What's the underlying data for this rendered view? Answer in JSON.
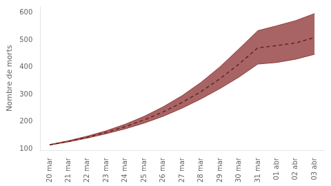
{
  "chart_data": {
    "type": "line",
    "ylabel": "Nombre de morts",
    "categories": [
      "20 mar",
      "21 mar",
      "22 mar",
      "23 mar",
      "24 mar",
      "25 mar",
      "26 mar",
      "27 mar",
      "28 mar",
      "29 mar",
      "30 mar",
      "31 mar",
      "01 abr",
      "02 abr",
      "03 abr"
    ],
    "series": [
      {
        "type": "area",
        "color": "#8b3030",
        "values": [
          116,
          130,
          147,
          167,
          191,
          220,
          255,
          296,
          345,
          402,
          468,
          535,
          553,
          572,
          598
        ]
      },
      {
        "type": "area",
        "color": "#8b3030",
        "values": [
          114,
          126,
          140,
          156,
          174,
          195,
          220,
          250,
          284,
          322,
          364,
          412,
          418,
          430,
          448
        ]
      },
      {
        "type": "line",
        "color": "#6b2020",
        "line_style": "dashed",
        "values": [
          115,
          128,
          143,
          161,
          182,
          207,
          236,
          271,
          311,
          358,
          412,
          472,
          480,
          490,
          510
        ]
      }
    ],
    "ylim": [
      95,
      625
    ],
    "yticks": [
      100,
      200,
      300,
      400,
      500,
      600
    ],
    "grid": false
  }
}
